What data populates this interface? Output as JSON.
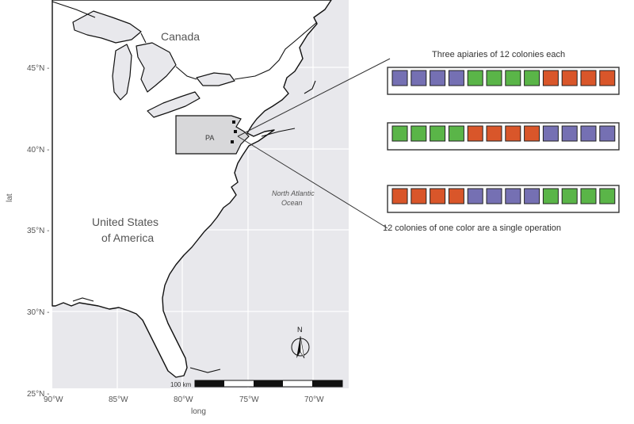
{
  "map": {
    "axis": {
      "x_title": "long",
      "y_title": "lat",
      "lat_labels": [
        "45°N -",
        "40°N -",
        "35°N -",
        "30°N -",
        "25°N -"
      ],
      "lon_labels": [
        "90°W",
        "85°W",
        "80°W",
        "75°W",
        "70°W"
      ]
    },
    "labels": {
      "canada": "Canada",
      "usa_line1": "United States",
      "usa_line2": "of America",
      "ocean_line1": "North Atlantic",
      "ocean_line2": "Ocean",
      "pa": "PA",
      "north": "N",
      "scale": "100 km"
    },
    "colors": {
      "ocean": "#e8e8ec",
      "land": "#ffffff",
      "pa_fill": "#d8d8da",
      "coast": "#111111",
      "grid": "#ffffff"
    }
  },
  "apiaries": {
    "title": "Three apiaries of 12 colonies each",
    "caption": "12 colonies of one color are a single operation",
    "colors": {
      "purple": "#7570b3",
      "green": "#5ab548",
      "orange": "#d9562a"
    },
    "rows": [
      [
        "purple",
        "purple",
        "purple",
        "purple",
        "green",
        "green",
        "green",
        "green",
        "orange",
        "orange",
        "orange",
        "orange"
      ],
      [
        "green",
        "green",
        "green",
        "green",
        "orange",
        "orange",
        "orange",
        "orange",
        "purple",
        "purple",
        "purple",
        "purple"
      ],
      [
        "orange",
        "orange",
        "orange",
        "orange",
        "purple",
        "purple",
        "purple",
        "purple",
        "green",
        "green",
        "green",
        "green"
      ]
    ]
  }
}
